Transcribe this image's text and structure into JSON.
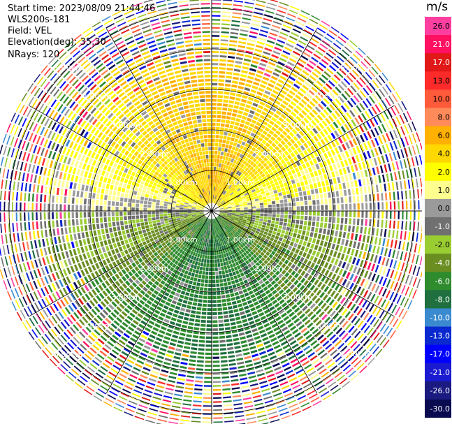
{
  "header": {
    "start_time": "Start time: 2023/08/09 21:44:46",
    "instrument": "WLS200s-181",
    "field": "Field: VEL",
    "elevation": "Elevation(deg): 35.30",
    "nrays": "NRays: 120"
  },
  "colorbar": {
    "unit": "m/s",
    "ticks": [
      "26.0",
      "21.0",
      "17.0",
      "13.0",
      "10.0",
      "8.0",
      "6.0",
      "4.0",
      "2.0",
      "1.0",
      "0.0",
      "-1.0",
      "-2.0",
      "-4.0",
      "-6.0",
      "-8.0",
      "-10.0",
      "-13.0",
      "-17.0",
      "-21.0",
      "-26.0",
      "-30.0"
    ],
    "colors": [
      "#ff3fa0",
      "#ff1060",
      "#e01818",
      "#ff2a2a",
      "#ff5a3a",
      "#ff8a5a",
      "#ffb000",
      "#ffd800",
      "#ffff00",
      "#ffff90",
      "#9a9a9a",
      "#707070",
      "#9acd32",
      "#6b8e23",
      "#2e8b2e",
      "#1f6f3f",
      "#3a8ad0",
      "#0a2ad0",
      "#0000ff",
      "#1a1ad0",
      "#1a1a80",
      "#0a0a50"
    ]
  },
  "chart_data": {
    "type": "heatmap",
    "projection": "polar-ppi",
    "field": "VEL",
    "units": "m/s",
    "nrays": 120,
    "range_rings_km": [
      1.0,
      2.0,
      3.0,
      4.0,
      5.0
    ],
    "ring_labels": [
      "1.00km",
      "2.00km",
      "3.00km",
      "4.00km",
      "5.00km"
    ],
    "gate_range_km": [
      0.2,
      5.4
    ],
    "pattern": {
      "north_sector_mean_ms": 3.0,
      "south_sector_mean_ms": -4.5,
      "noise_beyond_km": 4.3
    },
    "grid": "on",
    "legend": "right"
  }
}
